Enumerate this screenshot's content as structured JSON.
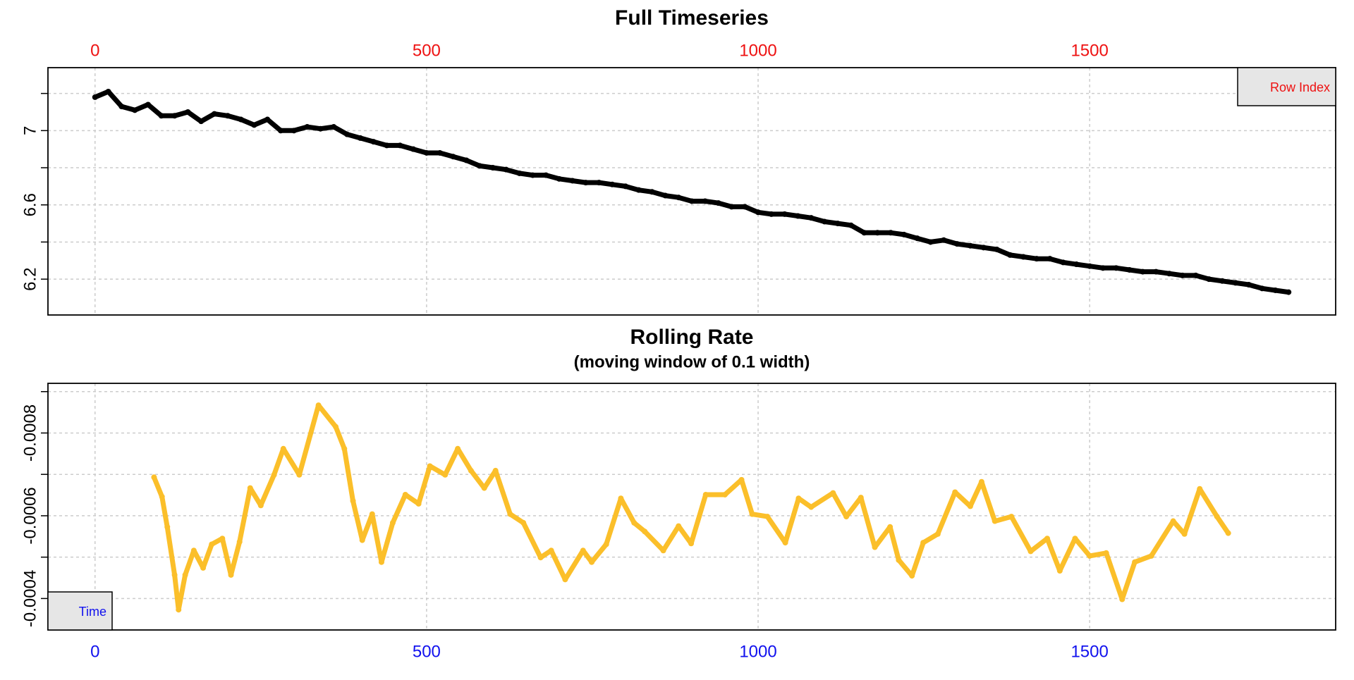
{
  "chart_data": [
    {
      "type": "scatter",
      "title": "Full Timeseries",
      "color": "#000000",
      "x": [
        0,
        20,
        40,
        60,
        80,
        100,
        120,
        140,
        160,
        180,
        200,
        220,
        240,
        260,
        280,
        300,
        320,
        340,
        360,
        380,
        400,
        420,
        440,
        460,
        480,
        500,
        520,
        540,
        560,
        580,
        600,
        620,
        640,
        660,
        680,
        700,
        720,
        740,
        760,
        780,
        800,
        820,
        840,
        860,
        880,
        900,
        920,
        940,
        960,
        980,
        1000,
        1020,
        1040,
        1060,
        1080,
        1100,
        1120,
        1140,
        1160,
        1180,
        1200,
        1220,
        1240,
        1260,
        1280,
        1300,
        1320,
        1340,
        1360,
        1380,
        1400,
        1420,
        1440,
        1460,
        1480,
        1500,
        1520,
        1540,
        1560,
        1580,
        1600,
        1620,
        1640,
        1660,
        1680,
        1700,
        1720,
        1740,
        1760,
        1780,
        1800
      ],
      "values": [
        7.18,
        7.21,
        7.13,
        7.11,
        7.14,
        7.08,
        7.08,
        7.1,
        7.05,
        7.09,
        7.08,
        7.06,
        7.03,
        7.06,
        7.0,
        7.0,
        7.02,
        7.01,
        7.02,
        6.98,
        6.96,
        6.94,
        6.92,
        6.92,
        6.9,
        6.88,
        6.88,
        6.86,
        6.84,
        6.81,
        6.8,
        6.79,
        6.77,
        6.76,
        6.76,
        6.74,
        6.73,
        6.72,
        6.72,
        6.71,
        6.7,
        6.68,
        6.67,
        6.65,
        6.64,
        6.62,
        6.62,
        6.61,
        6.59,
        6.59,
        6.56,
        6.55,
        6.55,
        6.54,
        6.53,
        6.51,
        6.5,
        6.49,
        6.45,
        6.45,
        6.45,
        6.44,
        6.42,
        6.4,
        6.41,
        6.39,
        6.38,
        6.37,
        6.36,
        6.33,
        6.32,
        6.31,
        6.31,
        6.29,
        6.28,
        6.27,
        6.26,
        6.26,
        6.25,
        6.24,
        6.24,
        6.23,
        6.22,
        6.22,
        6.2,
        6.19,
        6.18,
        6.17,
        6.15,
        6.14,
        6.13
      ],
      "xlim": [
        -71,
        1871
      ],
      "xticks": [
        0,
        500,
        1000,
        1500
      ],
      "xaxis_position": "top",
      "xtick_color": "#ee1111",
      "ylim": [
        6.007,
        7.339
      ],
      "yticks": [
        6.2,
        6.6,
        7.0
      ],
      "yminor_ticks": [
        6.4,
        6.8,
        7.2
      ],
      "grid": true,
      "legend": {
        "text": "Row Index",
        "corner": "top-right",
        "color": "#ee1111"
      }
    },
    {
      "type": "scatter",
      "title": "Rolling Rate",
      "subtitle": "(moving window of 0.1 width)",
      "color": "#fbbf2a",
      "x": [
        89,
        101,
        109,
        120,
        126,
        136,
        149,
        163,
        176,
        192,
        205,
        218,
        234,
        250,
        270,
        284,
        308,
        337,
        363,
        376,
        389,
        403,
        418,
        432,
        449,
        468,
        488,
        505,
        528,
        547,
        567,
        587,
        604,
        626,
        646,
        672,
        688,
        709,
        736,
        749,
        771,
        793,
        813,
        829,
        857,
        880,
        899,
        921,
        950,
        975,
        991,
        1014,
        1041,
        1061,
        1080,
        1113,
        1133,
        1155,
        1176,
        1199,
        1212,
        1232,
        1249,
        1271,
        1297,
        1320,
        1337,
        1357,
        1382,
        1411,
        1436,
        1455,
        1478,
        1500,
        1525,
        1549,
        1568,
        1593,
        1626,
        1643,
        1666,
        1692,
        1709
      ],
      "values": [
        -0.000693,
        -0.000646,
        -0.000573,
        -0.000457,
        -0.000373,
        -0.000457,
        -0.000516,
        -0.000474,
        -0.000531,
        -0.000545,
        -0.000457,
        -0.000537,
        -0.000667,
        -0.000625,
        -0.000699,
        -0.000762,
        -0.000699,
        -0.000867,
        -0.000815,
        -0.000762,
        -0.000636,
        -0.000541,
        -0.000604,
        -0.000488,
        -0.000583,
        -0.000651,
        -0.000629,
        -0.00072,
        -0.000699,
        -0.000762,
        -0.000709,
        -0.000667,
        -0.000709,
        -0.000604,
        -0.000583,
        -0.000499,
        -0.000516,
        -0.000446,
        -0.000516,
        -0.000488,
        -0.000531,
        -0.000642,
        -0.000583,
        -0.000562,
        -0.000516,
        -0.000575,
        -0.000533,
        -0.000651,
        -0.000651,
        -0.000687,
        -0.000604,
        -0.000598,
        -0.000535,
        -0.000642,
        -0.000621,
        -0.000655,
        -0.000598,
        -0.000644,
        -0.000524,
        -0.000573,
        -0.000493,
        -0.000455,
        -0.000535,
        -0.000556,
        -0.000657,
        -0.000623,
        -0.000682,
        -0.000587,
        -0.000598,
        -0.000514,
        -0.000545,
        -0.000467,
        -0.000545,
        -0.000503,
        -0.00051,
        -0.000398,
        -0.000488,
        -0.000503,
        -0.000587,
        -0.000556,
        -0.000665,
        -0.000598,
        -0.000558
      ],
      "xlim": [
        -71,
        1871
      ],
      "xticks": [
        0,
        500,
        1000,
        1500
      ],
      "xaxis_position": "bottom",
      "xtick_color": "#1111ee",
      "ylim": [
        -0.000324,
        -0.00092
      ],
      "yticks": [
        -0.0008,
        -0.0006,
        -0.0004
      ],
      "yminor_ticks": [
        -0.0009,
        -0.0007,
        -0.0005
      ],
      "grid": true,
      "legend": {
        "text": "Time",
        "corner": "bottom-left",
        "color": "#1111ee"
      }
    }
  ]
}
